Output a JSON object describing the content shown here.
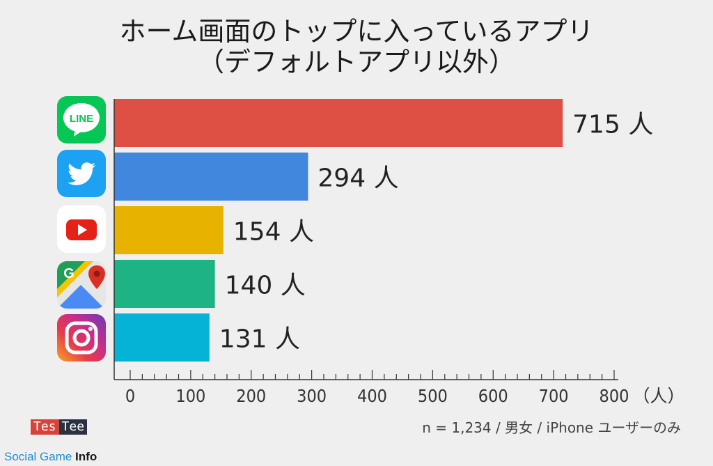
{
  "chart_data": {
    "type": "bar",
    "orientation": "horizontal",
    "title_line1": "ホーム画面のトップに入っているアプリ",
    "title_line2": "（デフォルトアプリ以外）",
    "categories": [
      "LINE",
      "Twitter",
      "YouTube",
      "Google Maps",
      "Instagram"
    ],
    "values": [
      715,
      294,
      154,
      140,
      131
    ],
    "value_suffix": " 人",
    "colors": [
      "#de5044",
      "#4287de",
      "#e8b300",
      "#1db385",
      "#05b3d6"
    ],
    "xlim": [
      0,
      800
    ],
    "xticks": [
      0,
      100,
      200,
      300,
      400,
      500,
      600,
      700,
      800
    ],
    "xunit_label": "（人）",
    "grid": false
  },
  "icons": [
    "line-icon",
    "twitter-icon",
    "youtube-icon",
    "google-maps-icon",
    "instagram-icon"
  ],
  "line_icon_text": "LINE",
  "footer": {
    "note": "n = 1,234 / 男女 / iPhone ユーザーのみ",
    "testee_a": "Tes",
    "testee_b": "Tee",
    "sgi_a": "Social Game ",
    "sgi_b": "Info"
  }
}
